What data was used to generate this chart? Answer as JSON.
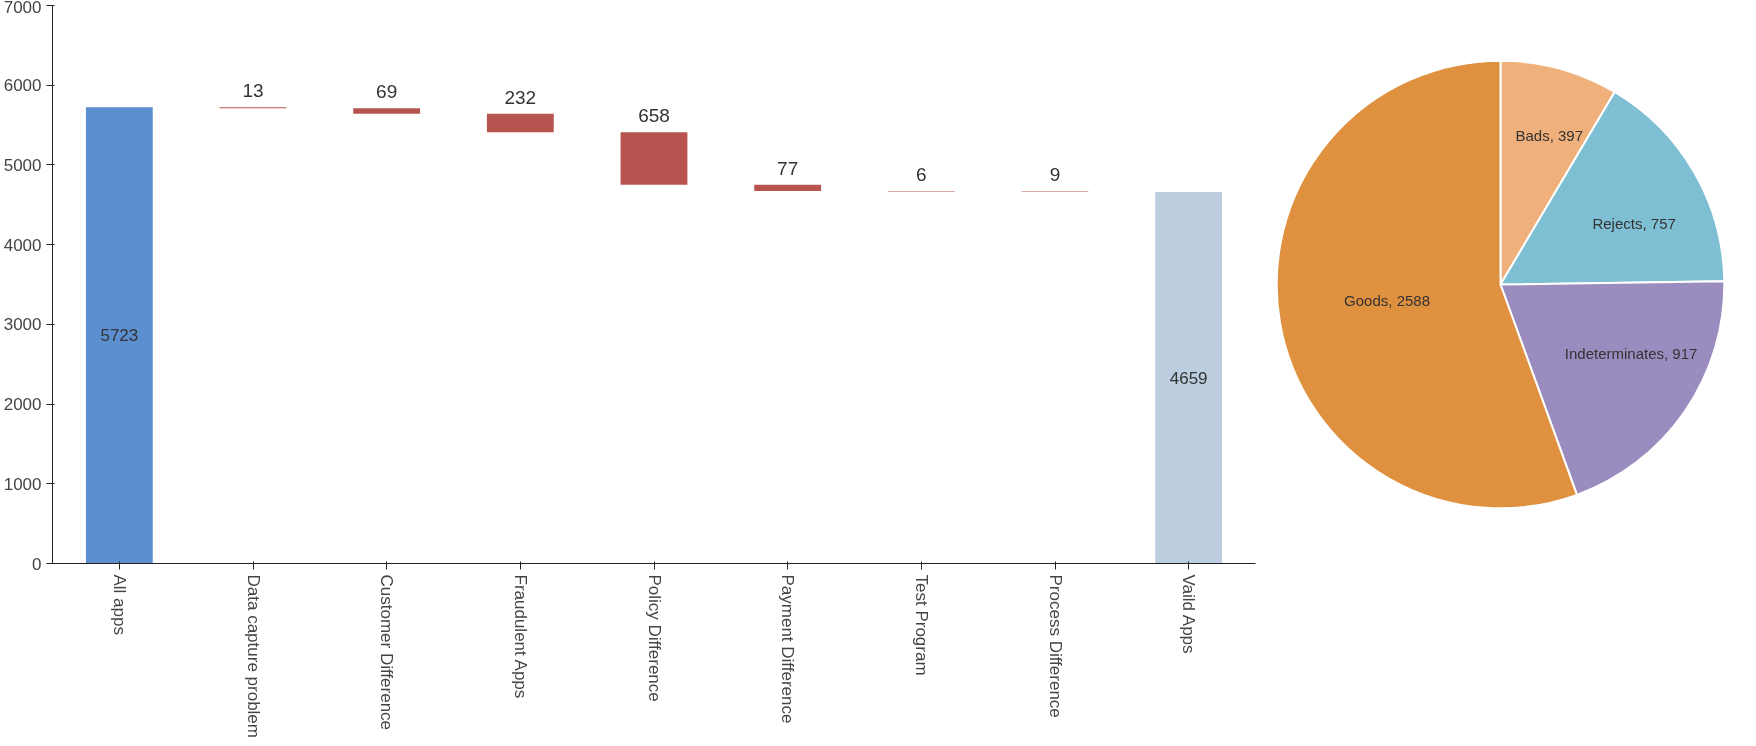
{
  "chart_data": [
    {
      "type": "bar",
      "categories": [
        "All apps",
        "Data capture problem",
        "Customer Difference",
        "Fraudulent Apps",
        "Policy Difference",
        "Payment Difference",
        "Test Program",
        "Process Difference",
        "Vaild Apps"
      ],
      "values": [
        5723,
        13,
        69,
        232,
        658,
        77,
        6,
        9,
        4659
      ],
      "base": [
        0,
        5710,
        5641,
        5409,
        4751,
        4674,
        4668,
        4659,
        0
      ],
      "colors": [
        "#5b8fd0",
        "#b85450",
        "#b85450",
        "#b85450",
        "#b85450",
        "#b85450",
        "#b85450",
        "#b85450",
        "#bccde0"
      ],
      "ylim": [
        0,
        7000
      ],
      "yticks": [
        0,
        1000,
        2000,
        3000,
        4000,
        5000,
        6000,
        7000
      ],
      "grid": false,
      "data_labels": true
    },
    {
      "type": "pie",
      "categories": [
        "Bads",
        "Rejects",
        "Indeterminates",
        "Goods"
      ],
      "values": [
        397,
        757,
        917,
        2588
      ],
      "colors": [
        "#f0b07c",
        "#7fbfd3",
        "#9a8cbf",
        "#e0913f"
      ],
      "value_labels": [
        ", 397",
        ", 757",
        ", 917",
        ", 2588"
      ]
    }
  ]
}
